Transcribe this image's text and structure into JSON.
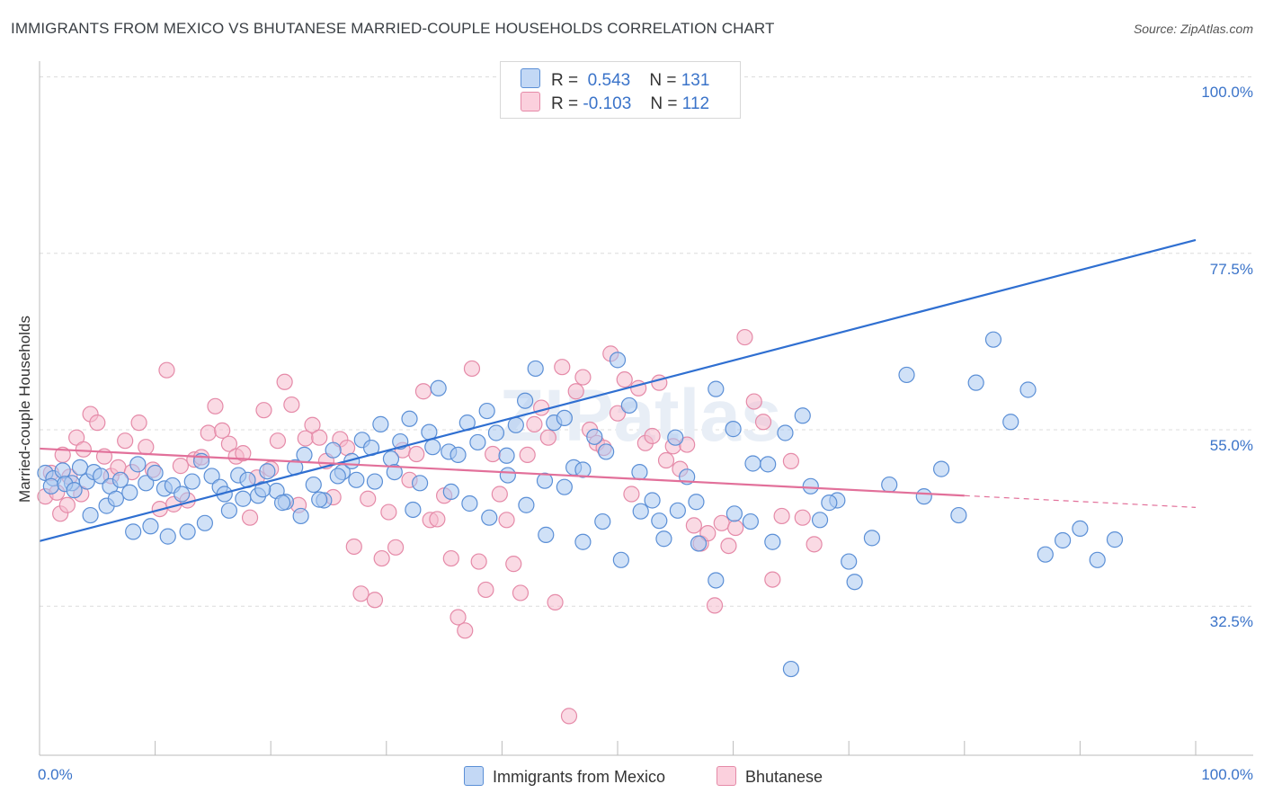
{
  "header": {
    "title": "IMMIGRANTS FROM MEXICO VS BHUTANESE MARRIED-COUPLE HOUSEHOLDS CORRELATION CHART",
    "source": "Source: ZipAtlas.com"
  },
  "legend": {
    "rows": [
      {
        "r_label": "R =",
        "r_value": "0.543",
        "n_label": "N =",
        "n_value": "131"
      },
      {
        "r_label": "R =",
        "r_value": "-0.103",
        "n_label": "N =",
        "n_value": "112"
      }
    ]
  },
  "bottom_legend": {
    "items": [
      "Immigrants from Mexico",
      "Bhutanese"
    ]
  },
  "colors": {
    "blue_fill": "#aac8f0",
    "blue_stroke": "#5b8fd6",
    "blue_line": "#2f6fd1",
    "pink_fill": "#f6bccd",
    "pink_stroke": "#e58aa8",
    "pink_line": "#e2709a",
    "axis_label": "#3a73c9",
    "grid": "#dcdcdc"
  },
  "chart_data": {
    "type": "scatter",
    "title": "IMMIGRANTS FROM MEXICO VS BHUTANESE MARRIED-COUPLE HOUSEHOLDS CORRELATION CHART",
    "ylabel": "Married-couple Households",
    "xlabel": "",
    "x_tick_labels": [
      "0.0%",
      "100.0%"
    ],
    "y_tick_labels": [
      "100.0%",
      "77.5%",
      "55.0%",
      "32.5%"
    ],
    "y_ticks": [
      100.0,
      77.5,
      55.0,
      32.5
    ],
    "xlim": [
      0,
      100
    ],
    "ylim": [
      13.5,
      102.0
    ],
    "grid": true,
    "legend_position": "top-center",
    "watermark": "ZIPatlas",
    "series": [
      {
        "name": "Immigrants from Mexico",
        "r": 0.543,
        "n": 131,
        "trend": {
          "x": [
            0,
            100
          ],
          "y": [
            40.8,
            79.2
          ],
          "dashed_from": null
        },
        "points": [
          [
            0.5,
            49.5
          ],
          [
            1.2,
            48.8
          ],
          [
            2.0,
            49.8
          ],
          [
            2.8,
            48.2
          ],
          [
            3.5,
            50.2
          ],
          [
            4.1,
            48.4
          ],
          [
            4.7,
            49.6
          ],
          [
            5.3,
            49.1
          ],
          [
            6.1,
            47.8
          ],
          [
            7.0,
            48.6
          ],
          [
            7.8,
            47.0
          ],
          [
            8.5,
            50.6
          ],
          [
            9.2,
            48.2
          ],
          [
            10.0,
            49.5
          ],
          [
            10.8,
            47.5
          ],
          [
            11.5,
            47.9
          ],
          [
            12.3,
            46.8
          ],
          [
            13.2,
            48.4
          ],
          [
            14.0,
            51.0
          ],
          [
            14.9,
            49.1
          ],
          [
            15.6,
            47.7
          ],
          [
            16.4,
            44.7
          ],
          [
            17.2,
            49.2
          ],
          [
            18.0,
            48.6
          ],
          [
            18.9,
            46.6
          ],
          [
            19.7,
            49.7
          ],
          [
            20.5,
            47.2
          ],
          [
            21.3,
            45.8
          ],
          [
            22.1,
            50.2
          ],
          [
            22.9,
            51.8
          ],
          [
            23.7,
            48.0
          ],
          [
            24.6,
            46.0
          ],
          [
            25.4,
            52.4
          ],
          [
            26.2,
            49.6
          ],
          [
            27.0,
            51.0
          ],
          [
            27.9,
            53.7
          ],
          [
            28.7,
            52.7
          ],
          [
            29.5,
            55.7
          ],
          [
            30.4,
            51.3
          ],
          [
            31.2,
            53.5
          ],
          [
            32.0,
            56.4
          ],
          [
            32.9,
            48.2
          ],
          [
            33.7,
            54.7
          ],
          [
            34.5,
            60.3
          ],
          [
            35.4,
            52.2
          ],
          [
            36.2,
            51.8
          ],
          [
            37.0,
            55.9
          ],
          [
            37.9,
            53.4
          ],
          [
            38.7,
            57.4
          ],
          [
            39.5,
            54.6
          ],
          [
            40.4,
            51.7
          ],
          [
            41.2,
            55.6
          ],
          [
            42.0,
            58.7
          ],
          [
            42.9,
            62.8
          ],
          [
            43.7,
            48.5
          ],
          [
            44.5,
            55.9
          ],
          [
            45.4,
            56.5
          ],
          [
            46.2,
            50.2
          ],
          [
            47.0,
            49.9
          ],
          [
            48.0,
            54.1
          ],
          [
            49.0,
            52.2
          ],
          [
            50.0,
            63.9
          ],
          [
            51.0,
            58.1
          ],
          [
            52.0,
            44.6
          ],
          [
            53.0,
            46.0
          ],
          [
            54.0,
            41.1
          ],
          [
            55.0,
            54.0
          ],
          [
            56.0,
            49.0
          ],
          [
            57.0,
            40.5
          ],
          [
            58.5,
            60.2
          ],
          [
            60.0,
            55.1
          ],
          [
            61.5,
            43.3
          ],
          [
            63.0,
            50.6
          ],
          [
            64.5,
            54.6
          ],
          [
            66.0,
            56.8
          ],
          [
            67.5,
            43.5
          ],
          [
            69.0,
            46.0
          ],
          [
            70.5,
            35.6
          ],
          [
            72.0,
            41.2
          ],
          [
            73.5,
            48.0
          ],
          [
            75.0,
            62.0
          ],
          [
            76.5,
            46.5
          ],
          [
            78.0,
            50.0
          ],
          [
            79.5,
            44.1
          ],
          [
            81.0,
            61.0
          ],
          [
            82.5,
            66.5
          ],
          [
            84.0,
            56.0
          ],
          [
            85.5,
            60.1
          ],
          [
            87.0,
            39.1
          ],
          [
            88.5,
            40.9
          ],
          [
            90.0,
            42.4
          ],
          [
            91.5,
            38.4
          ],
          [
            93.0,
            41.0
          ],
          [
            1.0,
            47.8
          ],
          [
            2.2,
            48.1
          ],
          [
            3.0,
            47.3
          ],
          [
            4.4,
            44.1
          ],
          [
            5.8,
            45.3
          ],
          [
            6.6,
            46.2
          ],
          [
            8.1,
            42.0
          ],
          [
            9.6,
            42.7
          ],
          [
            11.1,
            41.4
          ],
          [
            12.8,
            42.0
          ],
          [
            14.3,
            43.1
          ],
          [
            16.0,
            46.8
          ],
          [
            17.6,
            46.2
          ],
          [
            19.3,
            47.4
          ],
          [
            21.0,
            45.7
          ],
          [
            22.6,
            44.0
          ],
          [
            24.2,
            46.1
          ],
          [
            25.8,
            49.1
          ],
          [
            27.4,
            48.6
          ],
          [
            29.0,
            48.4
          ],
          [
            30.7,
            49.6
          ],
          [
            32.3,
            44.8
          ],
          [
            34.0,
            52.8
          ],
          [
            35.6,
            47.1
          ],
          [
            37.2,
            45.6
          ],
          [
            38.9,
            43.8
          ],
          [
            40.5,
            49.2
          ],
          [
            42.1,
            45.4
          ],
          [
            43.8,
            41.6
          ],
          [
            45.4,
            47.7
          ],
          [
            47.0,
            40.7
          ],
          [
            48.7,
            43.3
          ],
          [
            50.3,
            38.4
          ],
          [
            51.9,
            49.6
          ],
          [
            53.6,
            43.4
          ],
          [
            55.2,
            44.7
          ],
          [
            56.8,
            45.8
          ],
          [
            58.5,
            35.8
          ],
          [
            60.1,
            44.3
          ],
          [
            61.7,
            50.7
          ],
          [
            63.4,
            40.7
          ],
          [
            65.0,
            24.5
          ],
          [
            66.7,
            47.8
          ],
          [
            68.3,
            45.7
          ],
          [
            70.0,
            38.2
          ]
        ]
      },
      {
        "name": "Bhutanese",
        "r": -0.103,
        "n": 112,
        "trend": {
          "x": [
            0,
            100
          ],
          "y": [
            52.6,
            45.1
          ],
          "dashed_from": 80
        },
        "points": [
          [
            0.5,
            46.5
          ],
          [
            1.0,
            49.5
          ],
          [
            1.5,
            47.0
          ],
          [
            2.0,
            51.8
          ],
          [
            2.6,
            49.0
          ],
          [
            3.2,
            54.0
          ],
          [
            3.8,
            52.5
          ],
          [
            4.4,
            57.0
          ],
          [
            5.0,
            55.9
          ],
          [
            5.6,
            51.6
          ],
          [
            6.2,
            49.1
          ],
          [
            6.8,
            50.2
          ],
          [
            7.4,
            53.6
          ],
          [
            8.0,
            49.6
          ],
          [
            8.6,
            55.9
          ],
          [
            9.2,
            52.8
          ],
          [
            9.8,
            49.9
          ],
          [
            10.4,
            44.9
          ],
          [
            11.0,
            62.6
          ],
          [
            11.6,
            45.5
          ],
          [
            12.2,
            50.4
          ],
          [
            12.8,
            46.0
          ],
          [
            13.4,
            51.2
          ],
          [
            14.0,
            51.5
          ],
          [
            14.6,
            54.6
          ],
          [
            15.2,
            58.0
          ],
          [
            15.8,
            54.9
          ],
          [
            16.4,
            53.2
          ],
          [
            17.0,
            51.6
          ],
          [
            17.6,
            52.0
          ],
          [
            18.2,
            43.8
          ],
          [
            18.8,
            48.9
          ],
          [
            19.4,
            57.5
          ],
          [
            20.0,
            50.0
          ],
          [
            20.6,
            53.6
          ],
          [
            21.2,
            61.1
          ],
          [
            21.8,
            58.2
          ],
          [
            22.4,
            45.4
          ],
          [
            23.0,
            53.9
          ],
          [
            23.6,
            55.6
          ],
          [
            24.2,
            54.0
          ],
          [
            24.8,
            51.0
          ],
          [
            25.4,
            46.4
          ],
          [
            26.0,
            53.8
          ],
          [
            26.6,
            52.7
          ],
          [
            27.2,
            40.1
          ],
          [
            27.8,
            34.1
          ],
          [
            28.4,
            46.2
          ],
          [
            29.0,
            33.3
          ],
          [
            29.6,
            38.6
          ],
          [
            30.2,
            44.5
          ],
          [
            30.8,
            40.0
          ],
          [
            31.4,
            52.4
          ],
          [
            32.0,
            48.6
          ],
          [
            32.6,
            51.9
          ],
          [
            33.2,
            59.9
          ],
          [
            33.8,
            43.5
          ],
          [
            34.4,
            43.6
          ],
          [
            35.0,
            46.6
          ],
          [
            35.6,
            38.6
          ],
          [
            36.2,
            31.1
          ],
          [
            36.8,
            29.4
          ],
          [
            37.4,
            62.8
          ],
          [
            38.0,
            38.2
          ],
          [
            38.6,
            34.6
          ],
          [
            39.2,
            51.9
          ],
          [
            39.8,
            46.8
          ],
          [
            40.4,
            43.5
          ],
          [
            41.0,
            37.9
          ],
          [
            41.6,
            34.2
          ],
          [
            42.2,
            51.8
          ],
          [
            42.8,
            55.7
          ],
          [
            43.4,
            57.8
          ],
          [
            44.0,
            54.0
          ],
          [
            44.6,
            33.0
          ],
          [
            45.2,
            63.0
          ],
          [
            45.8,
            18.5
          ],
          [
            46.4,
            59.9
          ],
          [
            47.0,
            61.7
          ],
          [
            47.6,
            55.0
          ],
          [
            48.2,
            53.3
          ],
          [
            48.8,
            52.7
          ],
          [
            49.4,
            64.7
          ],
          [
            50.0,
            57.1
          ],
          [
            50.6,
            61.4
          ],
          [
            51.2,
            46.8
          ],
          [
            51.8,
            60.3
          ],
          [
            52.4,
            53.3
          ],
          [
            53.0,
            54.2
          ],
          [
            53.6,
            61.0
          ],
          [
            54.2,
            51.1
          ],
          [
            54.8,
            52.9
          ],
          [
            55.4,
            50.0
          ],
          [
            56.0,
            53.1
          ],
          [
            56.6,
            42.8
          ],
          [
            57.2,
            40.5
          ],
          [
            57.8,
            41.8
          ],
          [
            58.4,
            32.6
          ],
          [
            59.0,
            43.1
          ],
          [
            59.6,
            40.2
          ],
          [
            60.2,
            42.5
          ],
          [
            61.0,
            66.8
          ],
          [
            61.8,
            58.6
          ],
          [
            62.6,
            56.0
          ],
          [
            63.4,
            35.9
          ],
          [
            64.2,
            44.0
          ],
          [
            65.0,
            51.0
          ],
          [
            66.0,
            43.8
          ],
          [
            67.0,
            40.4
          ],
          [
            1.8,
            44.3
          ],
          [
            2.4,
            45.4
          ],
          [
            3.6,
            46.8
          ]
        ]
      }
    ]
  }
}
